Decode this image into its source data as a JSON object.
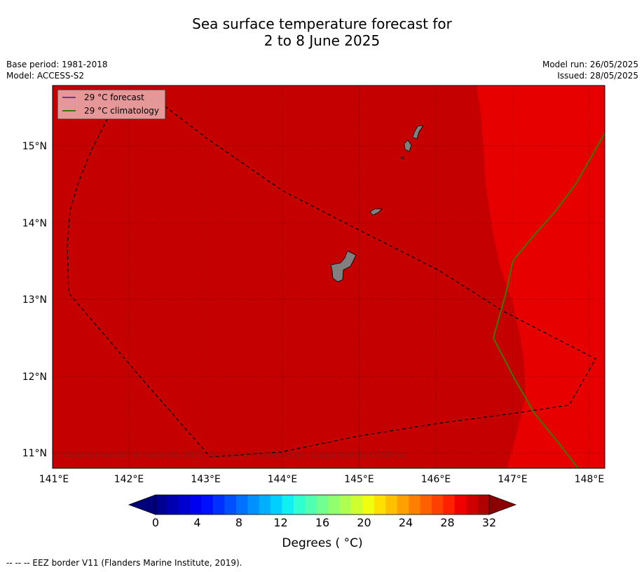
{
  "title_line1": "Sea surface temperature forecast for",
  "title_line2": "2 to 8 June 2025",
  "meta_left": [
    "Base period: 1981-2018",
    "Model: ACCESS-S2"
  ],
  "meta_right": [
    "Model run: 26/05/2025",
    "Issued: 28/05/2025"
  ],
  "legend": {
    "forecast_label": "29 °C  forecast",
    "climatology_label": "29 °C  climatology",
    "forecast_color": "#7b2cbf",
    "climatology_color": "#3a7a00"
  },
  "map": {
    "lon_range": [
      141,
      148.2
    ],
    "lat_range": [
      10.8,
      15.8
    ],
    "lon_ticks": [
      "141°E",
      "142°E",
      "143°E",
      "144°E",
      "145°E",
      "146°E",
      "147°E",
      "148°E"
    ],
    "lat_ticks": [
      "15°N",
      "14°N",
      "13°N",
      "12°N",
      "11°N"
    ],
    "fill_warm": "#c40000",
    "fill_hot": "#e60000",
    "land_color": "#808080",
    "copyright": "© Commonwealth of Australia 2025, Bureau of Meteorology, supported by COSPPac"
  },
  "colorbar": {
    "tick_labels": [
      "0",
      "4",
      "8",
      "12",
      "16",
      "20",
      "24",
      "28",
      "32"
    ],
    "label": "Degrees ( °C)",
    "colors": [
      "#000090",
      "#0000b0",
      "#0000d0",
      "#0000f0",
      "#0010ff",
      "#0030ff",
      "#0050ff",
      "#0070ff",
      "#0090ff",
      "#00b0ff",
      "#00d0ff",
      "#10f0f0",
      "#30ffd0",
      "#50ffb0",
      "#70ff90",
      "#90ff70",
      "#b0ff50",
      "#d0ff30",
      "#f0ff10",
      "#ffe000",
      "#ffc000",
      "#ffa000",
      "#ff8000",
      "#ff6000",
      "#ff4000",
      "#ff2000",
      "#f00000",
      "#d00000",
      "#b00000"
    ],
    "under_color": "#00007a",
    "over_color": "#8b0000"
  },
  "footer": "--  --  -- EEZ border V11 (Flanders Marine Institute, 2019)."
}
